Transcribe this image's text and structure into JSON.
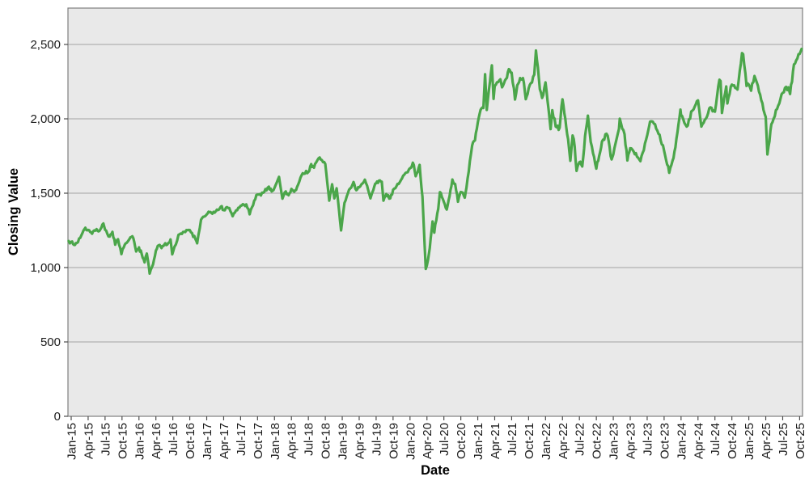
{
  "chart_data": {
    "type": "line",
    "title": "",
    "xlabel": "Date",
    "ylabel": "Closing Value",
    "grid": true,
    "legend": false,
    "x_axis": {
      "unit": "quarterly month labels",
      "tick_labels": [
        "Jan-15",
        "Apr-15",
        "Jul-15",
        "Oct-15",
        "Jan-16",
        "Apr-16",
        "Jul-16",
        "Oct-16",
        "Jan-17",
        "Apr-17",
        "Jul-17",
        "Oct-17",
        "Jan-18",
        "Apr-18",
        "Jul-18",
        "Oct-18",
        "Jan-19",
        "Apr-19",
        "Jul-19",
        "Oct-19",
        "Jan-20",
        "Apr-20",
        "Jul-20",
        "Oct-20",
        "Jan-21",
        "Apr-21",
        "Jul-21",
        "Oct-21",
        "Jan-22",
        "Apr-22",
        "Jul-22",
        "Oct-22",
        "Jan-23",
        "Apr-23",
        "Jul-23",
        "Oct-23",
        "Jan-24",
        "Apr-24",
        "Jul-24",
        "Oct-24",
        "Jan-25",
        "Apr-25",
        "Jul-25",
        "Oct-25"
      ]
    },
    "y_axis": {
      "ticks": [
        {
          "label": "0",
          "value": 0
        },
        {
          "label": "500",
          "value": 500
        },
        {
          "label": "1,000",
          "value": 1000
        },
        {
          "label": "1,500",
          "value": 1500
        },
        {
          "label": "2,000",
          "value": 2000
        },
        {
          "label": "2,500",
          "value": 2500
        }
      ],
      "range": [
        0,
        2745
      ]
    },
    "series": [
      {
        "name": "Closing Value",
        "color": "#4ba64a",
        "line_width": 3.2,
        "points_format": "[months_since_Jan2015, closing_value]",
        "points": [
          [
            -0.45,
            1178
          ],
          [
            0,
            1173
          ],
          [
            0.5,
            1152
          ],
          [
            1,
            1165
          ],
          [
            2,
            1233
          ],
          [
            2.5,
            1268
          ],
          [
            3,
            1253
          ],
          [
            3.7,
            1227
          ],
          [
            4.5,
            1258
          ],
          [
            5,
            1247
          ],
          [
            5.7,
            1296
          ],
          [
            6,
            1254
          ],
          [
            6.8,
            1208
          ],
          [
            7.3,
            1240
          ],
          [
            7.8,
            1154
          ],
          [
            8.3,
            1190
          ],
          [
            8.9,
            1090
          ],
          [
            9.3,
            1135
          ],
          [
            9.8,
            1165
          ],
          [
            10.5,
            1204
          ],
          [
            11,
            1198
          ],
          [
            11.5,
            1108
          ],
          [
            12,
            1136
          ],
          [
            12.5,
            1088
          ],
          [
            13,
            1035
          ],
          [
            13.4,
            1094
          ],
          [
            13.9,
            960
          ],
          [
            14.5,
            1022
          ],
          [
            15,
            1114
          ],
          [
            15.5,
            1150
          ],
          [
            16,
            1131
          ],
          [
            16.5,
            1155
          ],
          [
            17,
            1154
          ],
          [
            17.6,
            1189
          ],
          [
            17.9,
            1089
          ],
          [
            18.3,
            1140
          ],
          [
            19,
            1220
          ],
          [
            20,
            1240
          ],
          [
            21,
            1252
          ],
          [
            22,
            1191
          ],
          [
            22.3,
            1163
          ],
          [
            23,
            1322
          ],
          [
            24,
            1357
          ],
          [
            24.5,
            1372
          ],
          [
            25,
            1362
          ],
          [
            26,
            1387
          ],
          [
            26.5,
            1410
          ],
          [
            27,
            1386
          ],
          [
            28,
            1400
          ],
          [
            28.6,
            1345
          ],
          [
            29,
            1370
          ],
          [
            30,
            1415
          ],
          [
            31,
            1425
          ],
          [
            31.6,
            1358
          ],
          [
            32,
            1405
          ],
          [
            33,
            1491
          ],
          [
            34,
            1503
          ],
          [
            35,
            1544
          ],
          [
            35.5,
            1512
          ],
          [
            36,
            1536
          ],
          [
            36.8,
            1610
          ],
          [
            37.4,
            1463
          ],
          [
            38,
            1512
          ],
          [
            38.5,
            1486
          ],
          [
            39,
            1529
          ],
          [
            39.5,
            1510
          ],
          [
            40,
            1542
          ],
          [
            41,
            1634
          ],
          [
            42,
            1643
          ],
          [
            42.5,
            1695
          ],
          [
            43,
            1671
          ],
          [
            44,
            1740
          ],
          [
            45,
            1696
          ],
          [
            45.7,
            1450
          ],
          [
            46.2,
            1560
          ],
          [
            46.6,
            1465
          ],
          [
            47,
            1533
          ],
          [
            47.8,
            1250
          ],
          [
            48.4,
            1435
          ],
          [
            49,
            1499
          ],
          [
            50,
            1575
          ],
          [
            50.5,
            1520
          ],
          [
            51,
            1539
          ],
          [
            52,
            1591
          ],
          [
            53,
            1465
          ],
          [
            53.5,
            1520
          ],
          [
            54,
            1567
          ],
          [
            54.5,
            1585
          ],
          [
            55,
            1577
          ],
          [
            55.3,
            1450
          ],
          [
            55.8,
            1495
          ],
          [
            56.5,
            1465
          ],
          [
            57,
            1523
          ],
          [
            58,
            1562
          ],
          [
            59,
            1625
          ],
          [
            60,
            1668
          ],
          [
            60.5,
            1705
          ],
          [
            61,
            1614
          ],
          [
            61.7,
            1690
          ],
          [
            62.2,
            1476
          ],
          [
            62.8,
            991
          ],
          [
            63.2,
            1053
          ],
          [
            63.5,
            1130
          ],
          [
            64,
            1310
          ],
          [
            64.3,
            1235
          ],
          [
            65,
            1394
          ],
          [
            65.3,
            1507
          ],
          [
            66,
            1441
          ],
          [
            66.5,
            1390
          ],
          [
            67,
            1480
          ],
          [
            67.5,
            1592
          ],
          [
            68,
            1562
          ],
          [
            68.5,
            1443
          ],
          [
            69,
            1508
          ],
          [
            69.7,
            1470
          ],
          [
            70,
            1538
          ],
          [
            71,
            1820
          ],
          [
            71.5,
            1855
          ],
          [
            72,
            1975
          ],
          [
            72.5,
            2060
          ],
          [
            73,
            2073
          ],
          [
            73.3,
            2300
          ],
          [
            73.6,
            2060
          ],
          [
            74,
            2201
          ],
          [
            74.5,
            2360
          ],
          [
            74.8,
            2134
          ],
          [
            75,
            2221
          ],
          [
            76,
            2266
          ],
          [
            76.3,
            2212
          ],
          [
            77,
            2269
          ],
          [
            77.5,
            2334
          ],
          [
            78,
            2311
          ],
          [
            78.6,
            2130
          ],
          [
            79,
            2226
          ],
          [
            79.5,
            2274
          ],
          [
            80,
            2274
          ],
          [
            80.5,
            2132
          ],
          [
            81,
            2204
          ],
          [
            82,
            2297
          ],
          [
            82.3,
            2459
          ],
          [
            83,
            2199
          ],
          [
            83.4,
            2140
          ],
          [
            84,
            2245
          ],
          [
            84.9,
            1931
          ],
          [
            85.2,
            2058
          ],
          [
            85.8,
            1948
          ],
          [
            86.5,
            1941
          ],
          [
            87,
            2131
          ],
          [
            87.5,
            2000
          ],
          [
            88,
            1864
          ],
          [
            88.4,
            1718
          ],
          [
            88.8,
            1888
          ],
          [
            89,
            1864
          ],
          [
            89.5,
            1650
          ],
          [
            90,
            1708
          ],
          [
            90.5,
            1680
          ],
          [
            91,
            1885
          ],
          [
            91.5,
            2021
          ],
          [
            92,
            1844
          ],
          [
            93,
            1665
          ],
          [
            93.5,
            1750
          ],
          [
            94,
            1847
          ],
          [
            94.8,
            1900
          ],
          [
            95,
            1887
          ],
          [
            95.7,
            1727
          ],
          [
            96,
            1761
          ],
          [
            97,
            1932
          ],
          [
            97.15,
            2001
          ],
          [
            98,
            1897
          ],
          [
            98.5,
            1720
          ],
          [
            99,
            1802
          ],
          [
            100,
            1769
          ],
          [
            100.8,
            1715
          ],
          [
            101,
            1750
          ],
          [
            102,
            1889
          ],
          [
            102.5,
            1981
          ],
          [
            103,
            1981
          ],
          [
            104,
            1900
          ],
          [
            105,
            1785
          ],
          [
            105.9,
            1637
          ],
          [
            106.5,
            1720
          ],
          [
            107,
            1809
          ],
          [
            107.9,
            2062
          ],
          [
            108,
            2027
          ],
          [
            109,
            1948
          ],
          [
            110,
            2055
          ],
          [
            111,
            2124
          ],
          [
            111.6,
            1948
          ],
          [
            112,
            1974
          ],
          [
            113,
            2070
          ],
          [
            114,
            2048
          ],
          [
            114.8,
            2263
          ],
          [
            115,
            2254
          ],
          [
            115.25,
            2039
          ],
          [
            116,
            2218
          ],
          [
            116.2,
            2103
          ],
          [
            117,
            2230
          ],
          [
            118,
            2197
          ],
          [
            118.8,
            2442
          ],
          [
            119,
            2435
          ],
          [
            119.6,
            2221
          ],
          [
            120,
            2230
          ],
          [
            120.4,
            2189
          ],
          [
            121,
            2288
          ],
          [
            122,
            2163
          ],
          [
            123,
            2012
          ],
          [
            123.3,
            1761
          ],
          [
            124,
            1964
          ],
          [
            125,
            2066
          ],
          [
            126,
            2175
          ],
          [
            127,
            2212
          ],
          [
            127.3,
            2167
          ],
          [
            128,
            2366
          ],
          [
            129,
            2436
          ],
          [
            129.35,
            2470
          ]
        ]
      }
    ]
  },
  "styles": {
    "canvas_bg": "#ffffff",
    "plot_bg": "#e9e9e9",
    "grid_color": "#a3a3a3",
    "border_color": "#7f7f7f",
    "tick_color": "#4d4d4d",
    "tick_label_color": "#1a1a1a",
    "axis_title_color": "#000000",
    "series_color": "#4ba64a"
  }
}
